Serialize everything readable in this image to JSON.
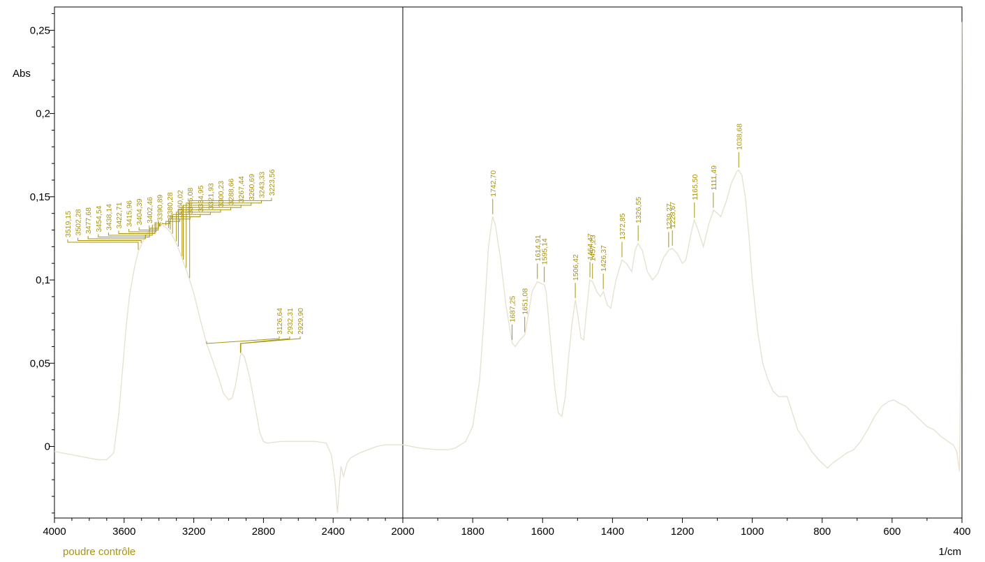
{
  "chart_data": {
    "type": "line",
    "title": "",
    "xlabel": "1/cm",
    "ylabel": "Abs",
    "x_axis": {
      "segments": [
        {
          "from": 4000,
          "to": 2000,
          "ticks": [
            4000,
            3600,
            3200,
            2800,
            2400,
            2000
          ],
          "tick_labels": [
            "4000",
            "3600",
            "3200",
            "2800",
            "2400",
            "2000"
          ]
        },
        {
          "from": 2000,
          "to": 400,
          "ticks": [
            1800,
            1600,
            1400,
            1200,
            1000,
            800,
            600,
            400
          ],
          "tick_labels": [
            "1800",
            "1600",
            "1400",
            "1200",
            "1000",
            "800",
            "600",
            "400"
          ]
        }
      ],
      "reversed": true
    },
    "y_axis": {
      "ylim": [
        -0.043,
        0.264
      ],
      "ticks": [
        0,
        0.05,
        0.1,
        0.15,
        0.2,
        0.25
      ],
      "tick_labels": [
        "0",
        "0,05",
        "0,1",
        "0,15",
        "0,2",
        "0,25"
      ]
    },
    "grid": false,
    "legend": {
      "position": "bottom-left"
    },
    "colors": {
      "curve": "#e6e2d2",
      "label": "#a9940f",
      "axis": "#000000"
    },
    "series": [
      {
        "name": "poudre contrôle",
        "points": [
          [
            4000,
            -0.003
          ],
          [
            3950,
            -0.004
          ],
          [
            3900,
            -0.005
          ],
          [
            3850,
            -0.006
          ],
          [
            3800,
            -0.007
          ],
          [
            3750,
            -0.008
          ],
          [
            3700,
            -0.008
          ],
          [
            3660,
            -0.004
          ],
          [
            3630,
            0.02
          ],
          [
            3610,
            0.045
          ],
          [
            3590,
            0.07
          ],
          [
            3570,
            0.09
          ],
          [
            3540,
            0.108
          ],
          [
            3519,
            0.117
          ],
          [
            3502,
            0.121
          ],
          [
            3478,
            0.126
          ],
          [
            3454,
            0.13
          ],
          [
            3438,
            0.132
          ],
          [
            3422,
            0.1335
          ],
          [
            3404,
            0.134
          ],
          [
            3390,
            0.1335
          ],
          [
            3380,
            0.133
          ],
          [
            3360,
            0.1315
          ],
          [
            3345,
            0.13
          ],
          [
            3335,
            0.129
          ],
          [
            3322,
            0.1265
          ],
          [
            3300,
            0.122
          ],
          [
            3289,
            0.119
          ],
          [
            3267,
            0.113
          ],
          [
            3261,
            0.111
          ],
          [
            3243,
            0.106
          ],
          [
            3224,
            0.1
          ],
          [
            3200,
            0.092
          ],
          [
            3160,
            0.075
          ],
          [
            3127,
            0.062
          ],
          [
            3100,
            0.054
          ],
          [
            3060,
            0.042
          ],
          [
            3030,
            0.032
          ],
          [
            3000,
            0.028
          ],
          [
            2980,
            0.029
          ],
          [
            2960,
            0.037
          ],
          [
            2940,
            0.05
          ],
          [
            2932,
            0.055
          ],
          [
            2925,
            0.056
          ],
          [
            2910,
            0.054
          ],
          [
            2880,
            0.042
          ],
          [
            2850,
            0.025
          ],
          [
            2820,
            0.008
          ],
          [
            2800,
            0.003
          ],
          [
            2780,
            0.002
          ],
          [
            2700,
            0.003
          ],
          [
            2600,
            0.003
          ],
          [
            2500,
            0.003
          ],
          [
            2440,
            0.002
          ],
          [
            2410,
            -0.005
          ],
          [
            2390,
            -0.02
          ],
          [
            2375,
            -0.04
          ],
          [
            2365,
            -0.025
          ],
          [
            2355,
            -0.012
          ],
          [
            2340,
            -0.018
          ],
          [
            2320,
            -0.01
          ],
          [
            2300,
            -0.007
          ],
          [
            2250,
            -0.004
          ],
          [
            2200,
            -0.002
          ],
          [
            2150,
            0.0
          ],
          [
            2100,
            0.001
          ],
          [
            2050,
            0.001
          ],
          [
            2000,
            0.001
          ],
          [
            1950,
            -0.001
          ],
          [
            1900,
            -0.002
          ],
          [
            1870,
            -0.002
          ],
          [
            1850,
            -0.001
          ],
          [
            1820,
            0.003
          ],
          [
            1800,
            0.012
          ],
          [
            1780,
            0.04
          ],
          [
            1765,
            0.085
          ],
          [
            1755,
            0.12
          ],
          [
            1743,
            0.138
          ],
          [
            1735,
            0.133
          ],
          [
            1720,
            0.112
          ],
          [
            1705,
            0.085
          ],
          [
            1690,
            0.066
          ],
          [
            1687,
            0.062
          ],
          [
            1678,
            0.06
          ],
          [
            1665,
            0.064
          ],
          [
            1651,
            0.067
          ],
          [
            1640,
            0.08
          ],
          [
            1630,
            0.093
          ],
          [
            1615,
            0.099
          ],
          [
            1605,
            0.098
          ],
          [
            1595,
            0.097
          ],
          [
            1590,
            0.093
          ],
          [
            1580,
            0.07
          ],
          [
            1565,
            0.035
          ],
          [
            1555,
            0.02
          ],
          [
            1545,
            0.018
          ],
          [
            1535,
            0.03
          ],
          [
            1525,
            0.055
          ],
          [
            1515,
            0.075
          ],
          [
            1506,
            0.088
          ],
          [
            1500,
            0.08
          ],
          [
            1490,
            0.065
          ],
          [
            1482,
            0.064
          ],
          [
            1475,
            0.08
          ],
          [
            1465,
            0.1
          ],
          [
            1457,
            0.099
          ],
          [
            1445,
            0.093
          ],
          [
            1435,
            0.09
          ],
          [
            1426,
            0.093
          ],
          [
            1415,
            0.085
          ],
          [
            1405,
            0.083
          ],
          [
            1390,
            0.1
          ],
          [
            1373,
            0.112
          ],
          [
            1360,
            0.11
          ],
          [
            1345,
            0.105
          ],
          [
            1335,
            0.118
          ],
          [
            1327,
            0.122
          ],
          [
            1315,
            0.118
          ],
          [
            1300,
            0.105
          ],
          [
            1285,
            0.1
          ],
          [
            1270,
            0.104
          ],
          [
            1255,
            0.113
          ],
          [
            1239,
            0.118
          ],
          [
            1229,
            0.119
          ],
          [
            1215,
            0.116
          ],
          [
            1200,
            0.11
          ],
          [
            1190,
            0.112
          ],
          [
            1175,
            0.128
          ],
          [
            1166,
            0.136
          ],
          [
            1155,
            0.13
          ],
          [
            1140,
            0.12
          ],
          [
            1125,
            0.133
          ],
          [
            1111,
            0.142
          ],
          [
            1100,
            0.14
          ],
          [
            1090,
            0.138
          ],
          [
            1075,
            0.147
          ],
          [
            1060,
            0.158
          ],
          [
            1045,
            0.165
          ],
          [
            1039,
            0.166
          ],
          [
            1030,
            0.163
          ],
          [
            1020,
            0.15
          ],
          [
            1010,
            0.128
          ],
          [
            1000,
            0.1
          ],
          [
            985,
            0.07
          ],
          [
            970,
            0.05
          ],
          [
            955,
            0.04
          ],
          [
            940,
            0.033
          ],
          [
            925,
            0.03
          ],
          [
            910,
            0.03
          ],
          [
            900,
            0.03
          ],
          [
            885,
            0.02
          ],
          [
            870,
            0.01
          ],
          [
            850,
            0.004
          ],
          [
            830,
            -0.003
          ],
          [
            810,
            -0.008
          ],
          [
            795,
            -0.011
          ],
          [
            785,
            -0.013
          ],
          [
            770,
            -0.01
          ],
          [
            750,
            -0.007
          ],
          [
            730,
            -0.004
          ],
          [
            710,
            -0.002
          ],
          [
            690,
            0.003
          ],
          [
            670,
            0.01
          ],
          [
            650,
            0.018
          ],
          [
            630,
            0.024
          ],
          [
            610,
            0.027
          ],
          [
            595,
            0.028
          ],
          [
            580,
            0.026
          ],
          [
            560,
            0.024
          ],
          [
            540,
            0.02
          ],
          [
            520,
            0.016
          ],
          [
            500,
            0.012
          ],
          [
            480,
            0.01
          ],
          [
            460,
            0.006
          ],
          [
            440,
            0.003
          ],
          [
            425,
            0.001
          ],
          [
            415,
            -0.003
          ],
          [
            407,
            -0.015
          ],
          [
            403,
            0.06
          ],
          [
            401,
            0.255
          ]
        ]
      }
    ],
    "peak_labels": [
      {
        "x": 3519.15,
        "text": "3519,15"
      },
      {
        "x": 3502.28,
        "text": "3502,28"
      },
      {
        "x": 3477.68,
        "text": "3477,68"
      },
      {
        "x": 3454.54,
        "text": "3454,54"
      },
      {
        "x": 3438.14,
        "text": "3438,14"
      },
      {
        "x": 3422.71,
        "text": "3422,71"
      },
      {
        "x": 3415.96,
        "text": "3415,96"
      },
      {
        "x": 3404.39,
        "text": "3404,39"
      },
      {
        "x": 3402.46,
        "text": "3402,46"
      },
      {
        "x": 3390.89,
        "text": "3390,89"
      },
      {
        "x": 3380.28,
        "text": "3380,28"
      },
      {
        "x": 3360.02,
        "text": "3360,02"
      },
      {
        "x": 3345.08,
        "text": "3345,08"
      },
      {
        "x": 3334.95,
        "text": "3334,95"
      },
      {
        "x": 3321.93,
        "text": "3321,93"
      },
      {
        "x": 3300.23,
        "text": "3300,23"
      },
      {
        "x": 3288.66,
        "text": "3288,66"
      },
      {
        "x": 3267.44,
        "text": "3267,44"
      },
      {
        "x": 3260.69,
        "text": "3260,69"
      },
      {
        "x": 3243.33,
        "text": "3243,33"
      },
      {
        "x": 3223.56,
        "text": "3223,56"
      },
      {
        "x": 3126.64,
        "text": "3126,64"
      },
      {
        "x": 2932.31,
        "text": "2932,31"
      },
      {
        "x": 2929.9,
        "text": "2929,90"
      },
      {
        "x": 1742.7,
        "text": "1742,70"
      },
      {
        "x": 1687.25,
        "text": "1687,25"
      },
      {
        "x": 1651.08,
        "text": "1651,08"
      },
      {
        "x": 1614.91,
        "text": "1614,91"
      },
      {
        "x": 1595.14,
        "text": "1595,14"
      },
      {
        "x": 1506.42,
        "text": "1506,42"
      },
      {
        "x": 1464.47,
        "text": "1464,47"
      },
      {
        "x": 1457.23,
        "text": "1457,23"
      },
      {
        "x": 1426.37,
        "text": "1426,37"
      },
      {
        "x": 1372.85,
        "text": "1372,85"
      },
      {
        "x": 1326.55,
        "text": "1326,55"
      },
      {
        "x": 1239.27,
        "text": "1239,27"
      },
      {
        "x": 1228.67,
        "text": "1228,67"
      },
      {
        "x": 1165.5,
        "text": "1165,50"
      },
      {
        "x": 1111.49,
        "text": "1111,49"
      },
      {
        "x": 1038.68,
        "text": "1038,68"
      }
    ]
  }
}
